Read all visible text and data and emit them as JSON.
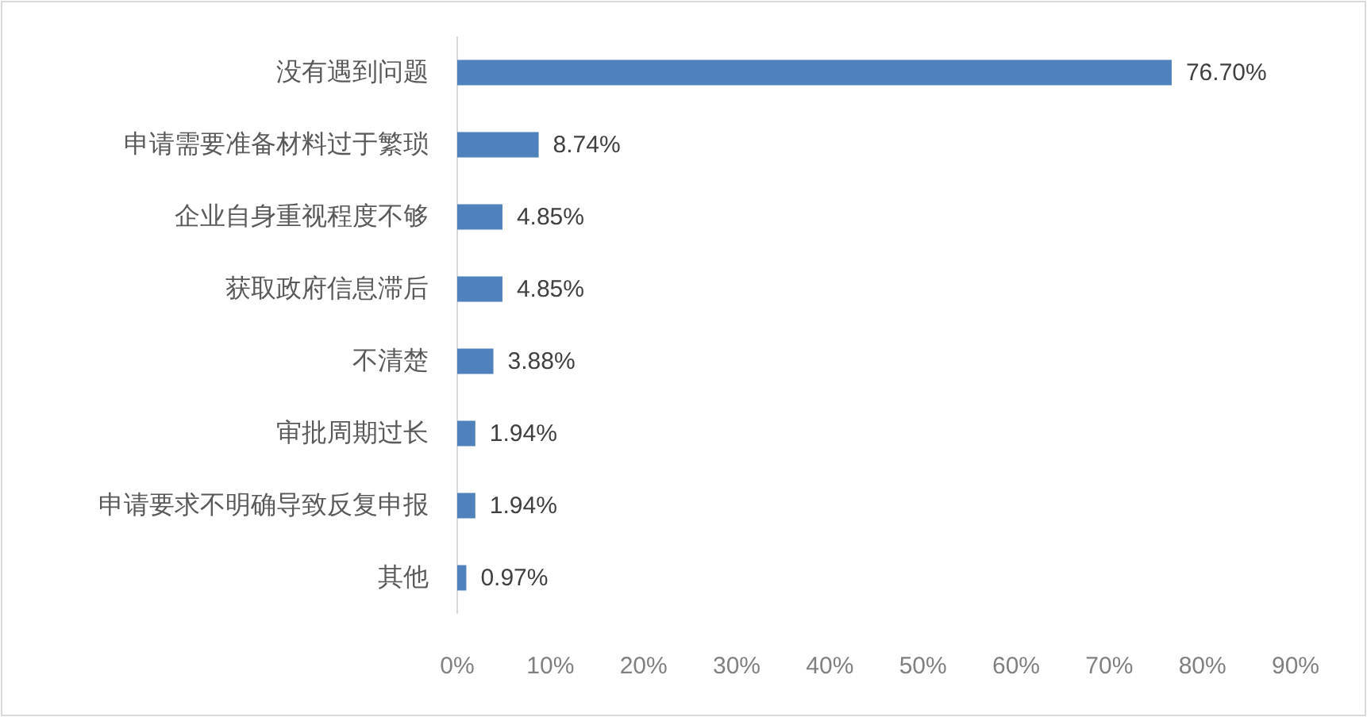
{
  "chart_data": {
    "type": "bar",
    "orientation": "horizontal",
    "categories": [
      "没有遇到问题",
      "申请需要准备材料过于繁琐",
      "企业自身重视程度不够",
      "获取政府信息滞后",
      "不清楚",
      "审批周期过长",
      "申请要求不明确导致反复申报",
      "其他"
    ],
    "values": [
      76.7,
      8.74,
      4.85,
      4.85,
      3.88,
      1.94,
      1.94,
      0.97
    ],
    "value_labels": [
      "76.70%",
      "8.74%",
      "4.85%",
      "4.85%",
      "3.88%",
      "1.94%",
      "1.94%",
      "0.97%"
    ],
    "color": "#4f81bd",
    "xlim": [
      0,
      90
    ],
    "xticks": [
      {
        "value": 0,
        "label": "0%"
      },
      {
        "value": 10,
        "label": "10%"
      },
      {
        "value": 20,
        "label": "20%"
      },
      {
        "value": 30,
        "label": "30%"
      },
      {
        "value": 40,
        "label": "40%"
      },
      {
        "value": 50,
        "label": "50%"
      },
      {
        "value": 60,
        "label": "60%"
      },
      {
        "value": 70,
        "label": "70%"
      },
      {
        "value": 80,
        "label": "80%"
      },
      {
        "value": 90,
        "label": "90%"
      }
    ],
    "grid": false
  }
}
